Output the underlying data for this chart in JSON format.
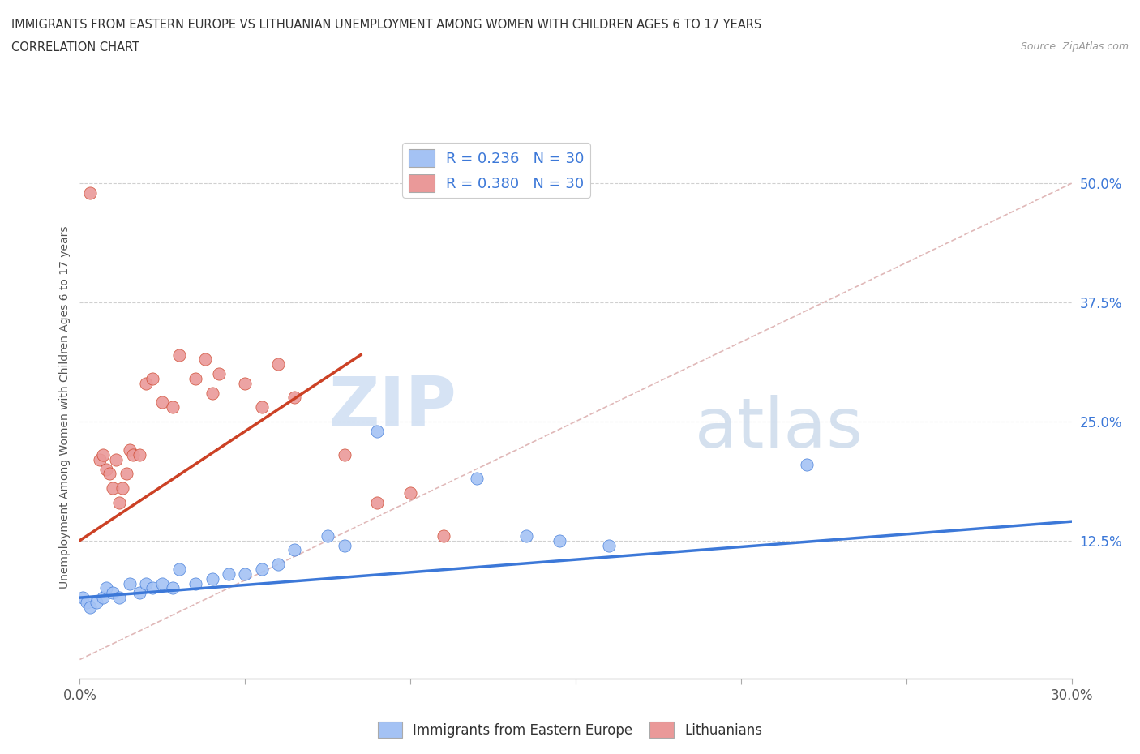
{
  "title_line1": "IMMIGRANTS FROM EASTERN EUROPE VS LITHUANIAN UNEMPLOYMENT AMONG WOMEN WITH CHILDREN AGES 6 TO 17 YEARS",
  "title_line2": "CORRELATION CHART",
  "source": "Source: ZipAtlas.com",
  "ylabel": "Unemployment Among Women with Children Ages 6 to 17 years",
  "xlim": [
    0.0,
    0.3
  ],
  "ylim": [
    -0.02,
    0.55
  ],
  "xticks": [
    0.0,
    0.05,
    0.1,
    0.15,
    0.2,
    0.25,
    0.3
  ],
  "yticks_right": [
    0.125,
    0.25,
    0.375,
    0.5
  ],
  "ytick_labels_right": [
    "12.5%",
    "25.0%",
    "37.5%",
    "50.0%"
  ],
  "watermark_zip": "ZIP",
  "watermark_atlas": "atlas",
  "legend_r1": "R = 0.236   N = 30",
  "legend_r2": "R = 0.380   N = 30",
  "blue_color": "#a4c2f4",
  "pink_color": "#ea9999",
  "blue_line_color": "#3c78d8",
  "pink_line_color": "#cc4125",
  "ref_line_color": "#e0b8b8",
  "blue_scatter": [
    [
      0.001,
      0.065
    ],
    [
      0.002,
      0.06
    ],
    [
      0.003,
      0.055
    ],
    [
      0.005,
      0.06
    ],
    [
      0.007,
      0.065
    ],
    [
      0.008,
      0.075
    ],
    [
      0.01,
      0.07
    ],
    [
      0.012,
      0.065
    ],
    [
      0.015,
      0.08
    ],
    [
      0.018,
      0.07
    ],
    [
      0.02,
      0.08
    ],
    [
      0.022,
      0.075
    ],
    [
      0.025,
      0.08
    ],
    [
      0.028,
      0.075
    ],
    [
      0.03,
      0.095
    ],
    [
      0.035,
      0.08
    ],
    [
      0.04,
      0.085
    ],
    [
      0.045,
      0.09
    ],
    [
      0.05,
      0.09
    ],
    [
      0.055,
      0.095
    ],
    [
      0.06,
      0.1
    ],
    [
      0.065,
      0.115
    ],
    [
      0.075,
      0.13
    ],
    [
      0.08,
      0.12
    ],
    [
      0.09,
      0.24
    ],
    [
      0.12,
      0.19
    ],
    [
      0.135,
      0.13
    ],
    [
      0.145,
      0.125
    ],
    [
      0.16,
      0.12
    ],
    [
      0.22,
      0.205
    ]
  ],
  "pink_scatter": [
    [
      0.003,
      0.49
    ],
    [
      0.006,
      0.21
    ],
    [
      0.007,
      0.215
    ],
    [
      0.008,
      0.2
    ],
    [
      0.009,
      0.195
    ],
    [
      0.01,
      0.18
    ],
    [
      0.011,
      0.21
    ],
    [
      0.012,
      0.165
    ],
    [
      0.013,
      0.18
    ],
    [
      0.014,
      0.195
    ],
    [
      0.015,
      0.22
    ],
    [
      0.016,
      0.215
    ],
    [
      0.018,
      0.215
    ],
    [
      0.02,
      0.29
    ],
    [
      0.022,
      0.295
    ],
    [
      0.025,
      0.27
    ],
    [
      0.028,
      0.265
    ],
    [
      0.03,
      0.32
    ],
    [
      0.035,
      0.295
    ],
    [
      0.038,
      0.315
    ],
    [
      0.04,
      0.28
    ],
    [
      0.042,
      0.3
    ],
    [
      0.05,
      0.29
    ],
    [
      0.055,
      0.265
    ],
    [
      0.06,
      0.31
    ],
    [
      0.065,
      0.275
    ],
    [
      0.08,
      0.215
    ],
    [
      0.09,
      0.165
    ],
    [
      0.1,
      0.175
    ],
    [
      0.11,
      0.13
    ]
  ],
  "blue_trend_x": [
    0.0,
    0.3
  ],
  "blue_trend_y": [
    0.065,
    0.145
  ],
  "pink_trend_x": [
    0.0,
    0.085
  ],
  "pink_trend_y": [
    0.125,
    0.32
  ],
  "ref_line_x": [
    0.0,
    0.3
  ],
  "ref_line_y": [
    0.0,
    0.5
  ]
}
